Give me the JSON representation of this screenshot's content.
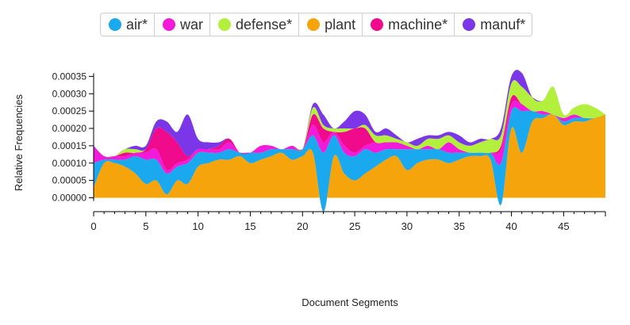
{
  "chart_data": {
    "type": "area",
    "stacked": true,
    "title": "",
    "xlabel": "Document Segments",
    "ylabel": "Relative Frequencies",
    "xlim": [
      0,
      49
    ],
    "ylim": [
      -4e-05,
      0.00036
    ],
    "x_ticks": [
      0,
      5,
      10,
      15,
      20,
      25,
      30,
      35,
      40,
      45
    ],
    "y_ticks": [
      0.0,
      5e-05,
      0.0001,
      0.00015,
      0.0002,
      0.00025,
      0.0003,
      0.00035
    ],
    "y_tick_labels": [
      "0.00000",
      "0.00005",
      "0.00010",
      "0.00015",
      "0.00020",
      "0.00025",
      "0.00030",
      "0.00035"
    ],
    "legend_position": "top",
    "series": [
      {
        "name": "plant",
        "color": "#f5a40c",
        "values": [
          3e-05,
          0.0001,
          0.0001,
          9e-05,
          7e-05,
          4e-05,
          5e-05,
          1e-05,
          5e-05,
          4e-05,
          9e-05,
          0.0001,
          0.00011,
          0.00011,
          0.00012,
          0.0001,
          0.00011,
          0.00012,
          0.00013,
          0.00011,
          0.00012,
          0.00013,
          -4e-05,
          0.00012,
          7e-05,
          5e-05,
          7e-05,
          9e-05,
          0.00011,
          0.00012,
          8e-05,
          0.0001,
          0.00011,
          0.00011,
          0.0001,
          0.00011,
          0.00012,
          0.00012,
          0.00011,
          -2e-05,
          0.0002,
          0.00013,
          0.00022,
          0.00023,
          0.00024,
          0.00021,
          0.00022,
          0.00022,
          0.00023,
          0.00024
        ]
      },
      {
        "name": "air*",
        "color": "#1aa8ee",
        "values": [
          7e-05,
          1e-05,
          1e-05,
          2e-05,
          5e-05,
          7e-05,
          6e-05,
          6e-05,
          4e-05,
          6e-05,
          4e-05,
          3e-05,
          2e-05,
          3e-05,
          1e-05,
          3e-05,
          2e-05,
          2e-05,
          1e-05,
          3e-05,
          2e-05,
          5e-05,
          0.00017,
          6e-05,
          6e-05,
          7e-05,
          7e-05,
          4e-05,
          3e-05,
          2e-05,
          6e-05,
          4e-05,
          3e-05,
          3e-05,
          3e-05,
          2e-05,
          1e-05,
          1e-05,
          2e-05,
          0.00012,
          5e-05,
          0.00012,
          3e-05,
          1e-05,
          0.0,
          1e-05,
          1e-05,
          1e-05,
          0.0,
          0.0
        ]
      },
      {
        "name": "war",
        "color": "#f21bdc",
        "values": [
          5e-05,
          1e-05,
          1e-05,
          1e-05,
          1e-05,
          2e-05,
          3e-05,
          1e-05,
          1e-05,
          1e-05,
          1e-05,
          1e-05,
          1e-05,
          2e-05,
          0.0,
          0.0,
          2e-05,
          1e-05,
          0.0,
          1e-05,
          0.0,
          3e-05,
          3e-05,
          1e-05,
          2e-05,
          1e-05,
          1e-05,
          3e-05,
          2e-05,
          2e-05,
          1e-05,
          0.0,
          1e-05,
          0.0,
          3e-05,
          1e-05,
          0.0,
          0.0,
          0.0,
          4e-05,
          2e-05,
          2e-05,
          0.0,
          1e-05,
          0.0,
          1e-05,
          1e-05,
          0.0,
          0.0,
          0.0
        ]
      },
      {
        "name": "machine*",
        "color": "#f00a8c",
        "values": [
          0.0,
          0.0,
          0.0,
          1e-05,
          0.0,
          1e-05,
          6e-05,
          0.00011,
          6e-05,
          1e-05,
          0.0,
          0.0,
          1e-05,
          1e-05,
          0.0,
          0.0,
          0.0,
          0.0,
          0.0,
          0.0,
          0.0,
          3e-05,
          4e-05,
          0.0,
          4e-05,
          7e-05,
          5e-05,
          0.0,
          0.0,
          0.0,
          0.0,
          0.0,
          0.0,
          0.0,
          0.0,
          0.0,
          0.0,
          0.0,
          0.0,
          1e-05,
          2e-05,
          0.0,
          0.0,
          0.0,
          0.0,
          0.0,
          0.0,
          0.0,
          0.0,
          0.0
        ]
      },
      {
        "name": "defense*",
        "color": "#b2f03d",
        "values": [
          0.0,
          0.0,
          0.0,
          1e-05,
          1e-05,
          0.0,
          0.0,
          0.0,
          0.0,
          0.0,
          0.0,
          0.0,
          0.0,
          0.0,
          0.0,
          0.0,
          0.0,
          0.0,
          0.0,
          0.0,
          0.0,
          2e-05,
          1e-05,
          1e-05,
          1e-05,
          0.0,
          1e-05,
          2e-05,
          2e-05,
          1e-05,
          1e-05,
          1e-05,
          2e-05,
          3e-05,
          2e-05,
          2e-05,
          2e-05,
          3e-05,
          4e-05,
          3e-05,
          4e-05,
          5e-05,
          4e-05,
          3e-05,
          8e-05,
          1e-05,
          2e-05,
          4e-05,
          3e-05,
          0.0
        ]
      },
      {
        "name": "manuf*",
        "color": "#7b36e8",
        "values": [
          0.0,
          0.0,
          0.0,
          0.0,
          1e-05,
          1e-05,
          2e-05,
          3e-05,
          3e-05,
          0.00012,
          3e-05,
          2e-05,
          1e-05,
          0.0,
          0.0,
          0.0,
          0.0,
          0.0,
          0.0,
          0.0,
          0.0,
          1e-05,
          3e-05,
          0.0,
          2e-05,
          5e-05,
          3e-05,
          1e-05,
          2e-05,
          1e-05,
          0.0,
          2e-05,
          1e-05,
          1e-05,
          1e-05,
          2e-05,
          1e-05,
          1e-05,
          0.0,
          2e-05,
          2e-05,
          4e-05,
          0.0,
          0.0,
          0.0,
          0.0,
          0.0,
          0.0,
          0.0,
          0.0
        ]
      }
    ]
  },
  "legend": {
    "items": [
      {
        "label": "air*",
        "color": "#1aa8ee"
      },
      {
        "label": "war",
        "color": "#f21bdc"
      },
      {
        "label": "defense*",
        "color": "#b2f03d"
      },
      {
        "label": "plant",
        "color": "#f5a40c"
      },
      {
        "label": "machine*",
        "color": "#f00a8c"
      },
      {
        "label": "manuf*",
        "color": "#7b36e8"
      }
    ]
  }
}
